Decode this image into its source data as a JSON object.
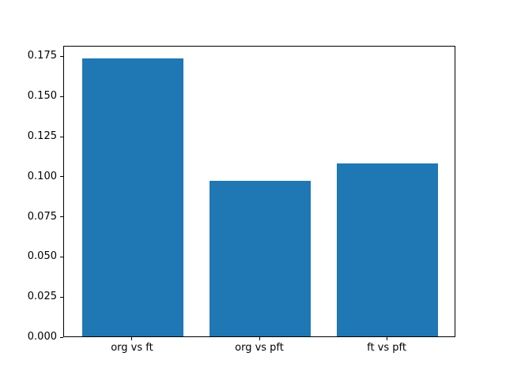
{
  "chart_data": {
    "type": "bar",
    "title": "",
    "xlabel": "",
    "ylabel": "",
    "categories": [
      "org vs ft",
      "org vs pft",
      "ft vs pft"
    ],
    "values": [
      0.173,
      0.097,
      0.108
    ],
    "ylim": [
      0,
      0.1816
    ],
    "xlim": [
      -0.54,
      2.54
    ],
    "bar_width_data_units": 0.8,
    "yticks": [
      0.0,
      0.025,
      0.05,
      0.075,
      0.1,
      0.125,
      0.15,
      0.175
    ],
    "ytick_labels": [
      "0.000",
      "0.025",
      "0.050",
      "0.075",
      "0.100",
      "0.125",
      "0.150",
      "0.175"
    ],
    "bar_color": "#1f77b4",
    "axis_color": "#000000",
    "background_color": "#ffffff",
    "grid": false,
    "legend": null
  }
}
